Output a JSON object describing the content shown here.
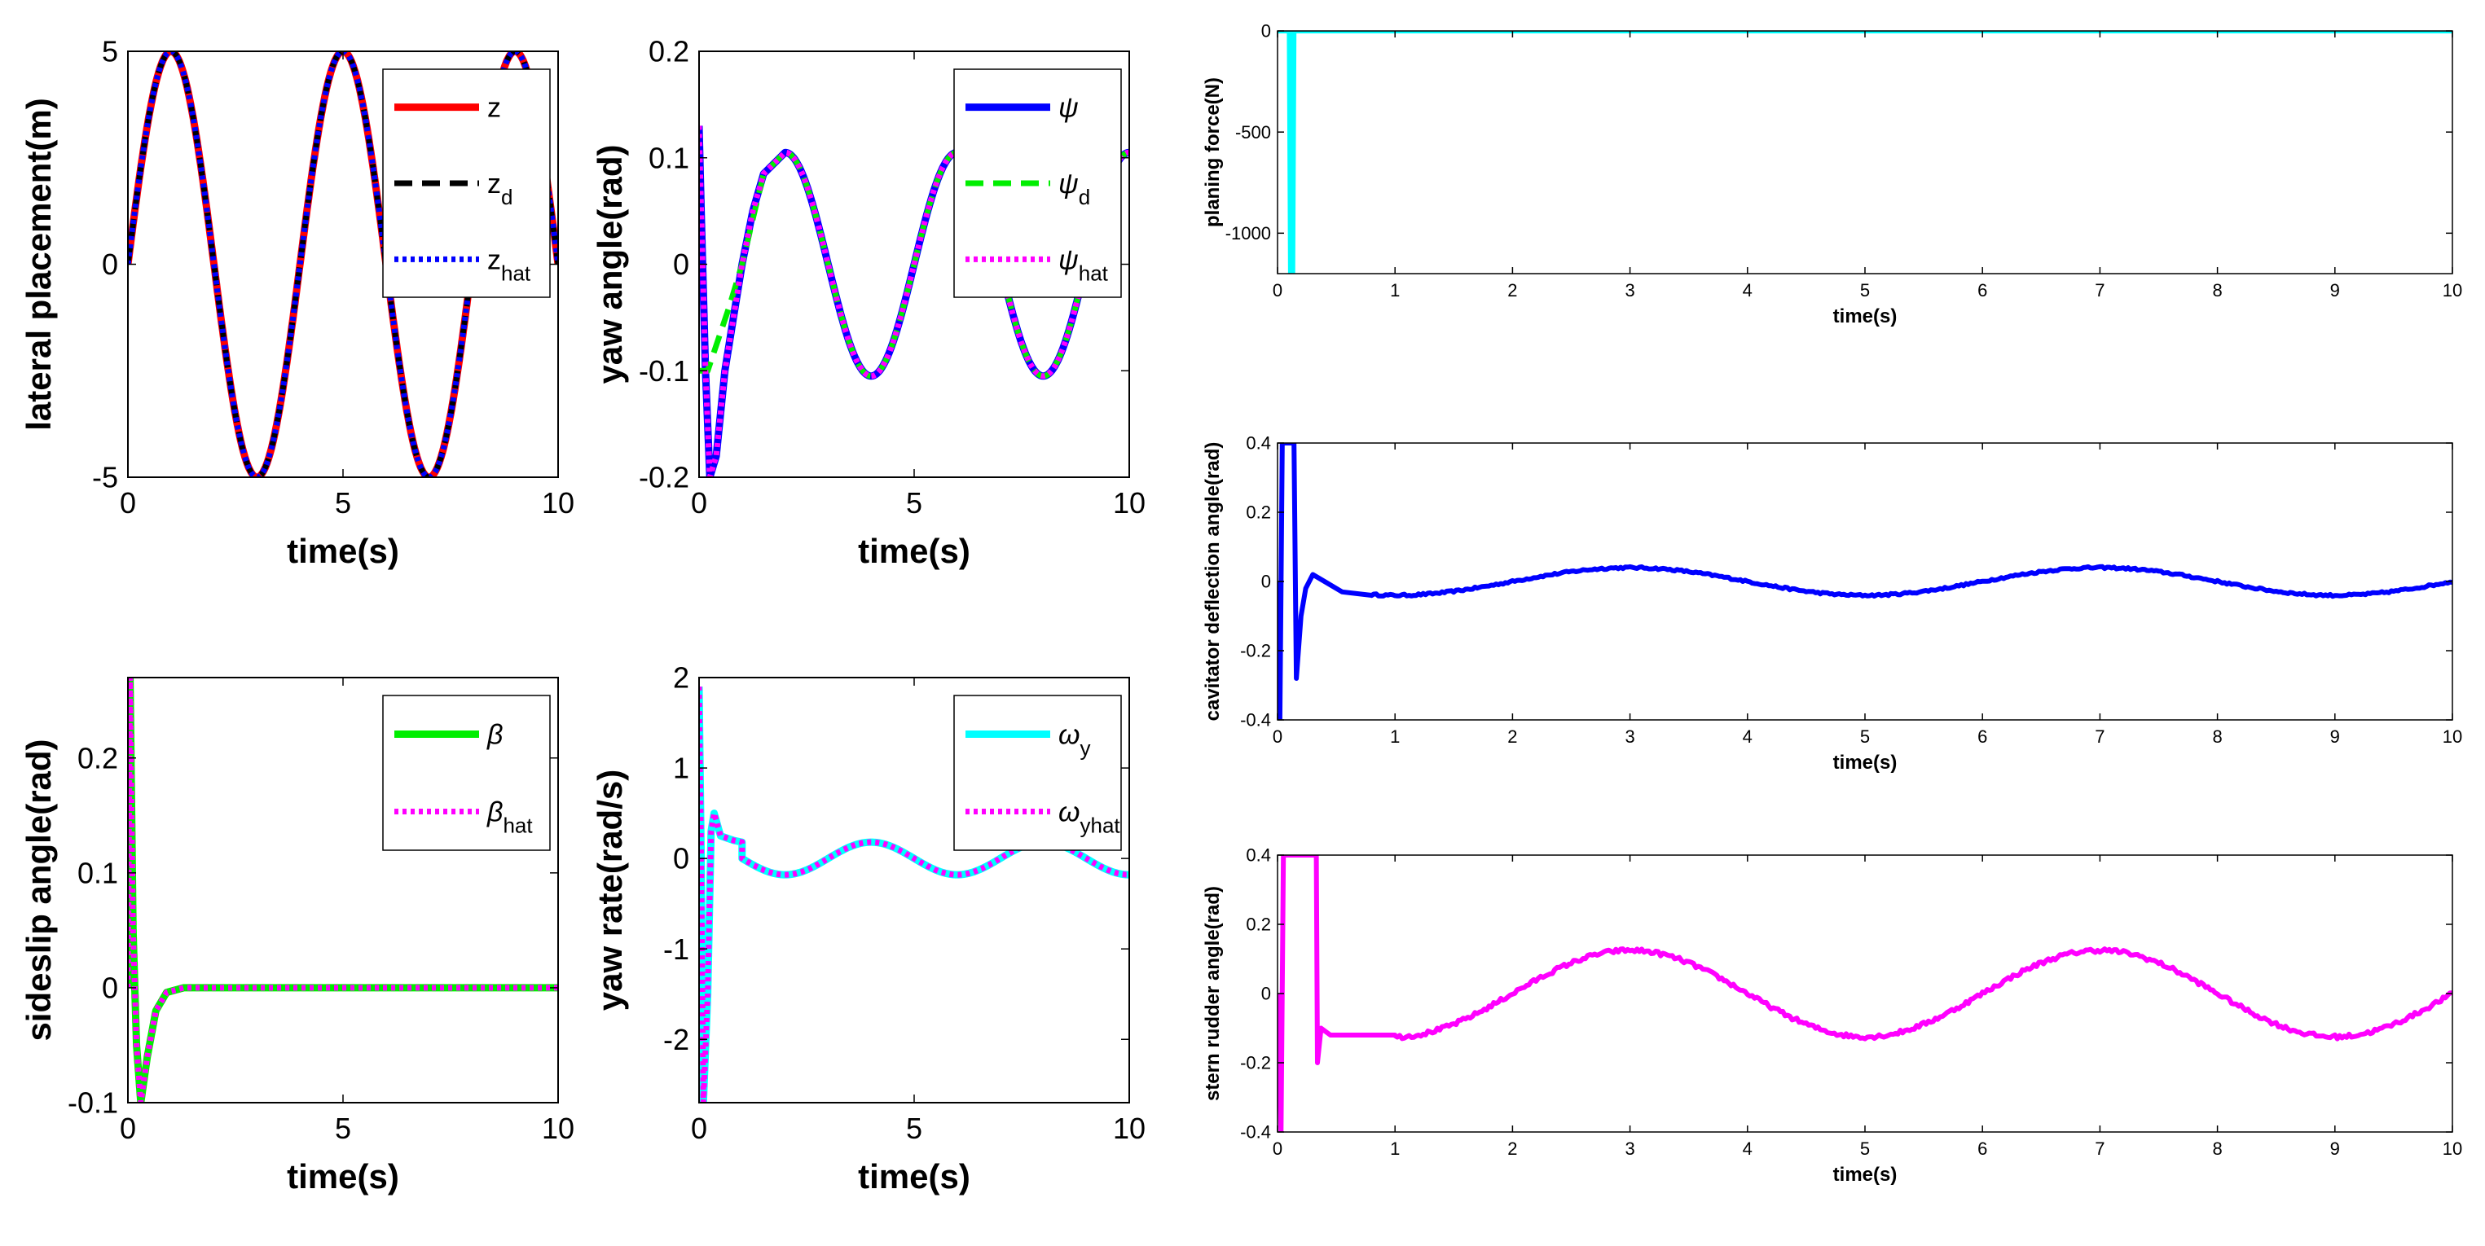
{
  "chart_data": [
    {
      "id": "p1",
      "type": "line",
      "xlabel": "time(s)",
      "ylabel": "lateral placement(m)",
      "xlim": [
        0,
        10
      ],
      "ylim": [
        -5,
        5
      ],
      "xticks": [
        "0",
        "5",
        "10"
      ],
      "yticks": [
        "-5",
        "0",
        "5"
      ],
      "series": [
        {
          "name": "z",
          "sub": "",
          "color": "#ff0000",
          "style": "solid",
          "fn": "sine",
          "params": {
            "amp": 5,
            "period": 4
          }
        },
        {
          "name": "z",
          "sub": "d",
          "color": "#000000",
          "style": "dashed",
          "fn": "sine",
          "params": {
            "amp": 5,
            "period": 4
          }
        },
        {
          "name": "z",
          "sub": "hat",
          "color": "#0000ff",
          "style": "dotted",
          "fn": "sine",
          "params": {
            "amp": 5,
            "period": 4
          }
        }
      ],
      "legend": "top-right"
    },
    {
      "id": "p2",
      "type": "line",
      "xlabel": "time(s)",
      "ylabel": "yaw angle(rad)",
      "xlim": [
        0,
        10
      ],
      "ylim": [
        -0.2,
        0.2
      ],
      "xticks": [
        "0",
        "5",
        "10"
      ],
      "yticks": [
        "-0.2",
        "-0.1",
        "0",
        "0.1",
        "0.2"
      ],
      "series": [
        {
          "name": "ψ",
          "sub": "",
          "color": "#0000ff",
          "style": "solid",
          "points": [
            [
              0,
              0.13
            ],
            [
              0.05,
              0.05
            ],
            [
              0.15,
              -0.1
            ],
            [
              0.25,
              -0.2
            ],
            [
              0.4,
              -0.18
            ],
            [
              0.6,
              -0.1
            ],
            [
              0.8,
              -0.05
            ],
            [
              1.0,
              0.0
            ],
            [
              1.25,
              0.05
            ],
            [
              1.5,
              0.085
            ],
            [
              2,
              0.105
            ]
          ],
          "fn": "cosine",
          "from": 2,
          "params": {
            "amp": 0.105,
            "period": 4
          }
        },
        {
          "name": "ψ",
          "sub": "d",
          "color": "#00ee00",
          "style": "dashed",
          "points": [
            [
              0,
              -0.1
            ],
            [
              0.2,
              -0.1
            ],
            [
              0.45,
              -0.07
            ],
            [
              0.7,
              -0.04
            ],
            [
              1.0,
              0.0
            ],
            [
              1.5,
              0.085
            ],
            [
              2,
              0.105
            ]
          ],
          "fn": "cosine",
          "from": 2,
          "params": {
            "amp": 0.105,
            "period": 4
          }
        },
        {
          "name": "ψ",
          "sub": "hat",
          "color": "#ff00ff",
          "style": "dotted",
          "points": [
            [
              0,
              0.13
            ],
            [
              0.05,
              0.05
            ],
            [
              0.15,
              -0.1
            ],
            [
              0.25,
              -0.2
            ],
            [
              0.4,
              -0.18
            ],
            [
              0.6,
              -0.1
            ],
            [
              0.8,
              -0.05
            ],
            [
              1.0,
              0.0
            ],
            [
              1.25,
              0.05
            ],
            [
              1.5,
              0.085
            ],
            [
              2,
              0.105
            ]
          ],
          "fn": "cosine",
          "from": 2,
          "params": {
            "amp": 0.105,
            "period": 4
          }
        }
      ],
      "legend": "top-right"
    },
    {
      "id": "p3",
      "type": "line",
      "xlabel": "time(s)",
      "ylabel": "sideslip angle(rad)",
      "xlim": [
        0,
        10
      ],
      "ylim": [
        -0.1,
        0.27
      ],
      "xticks": [
        "0",
        "5",
        "10"
      ],
      "yticks": [
        "-0.1",
        "0",
        "0.1",
        "0.2"
      ],
      "series": [
        {
          "name": "β",
          "sub": "",
          "color": "#00ee00",
          "style": "solid",
          "points": [
            [
              0,
              0.0
            ],
            [
              0.05,
              0.27
            ],
            [
              0.12,
              0.05
            ],
            [
              0.2,
              -0.05
            ],
            [
              0.3,
              -0.1
            ],
            [
              0.45,
              -0.06
            ],
            [
              0.65,
              -0.02
            ],
            [
              0.9,
              -0.004
            ],
            [
              1.3,
              0
            ],
            [
              10,
              0
            ]
          ]
        },
        {
          "name": "β",
          "sub": "hat",
          "color": "#ff00ff",
          "style": "dotted",
          "points": [
            [
              0,
              0.0
            ],
            [
              0.05,
              0.27
            ],
            [
              0.12,
              0.05
            ],
            [
              0.2,
              -0.05
            ],
            [
              0.3,
              -0.1
            ],
            [
              0.45,
              -0.06
            ],
            [
              0.65,
              -0.02
            ],
            [
              0.9,
              -0.004
            ],
            [
              1.3,
              0
            ],
            [
              10,
              0
            ]
          ]
        }
      ],
      "legend": "top-right"
    },
    {
      "id": "p4",
      "type": "line",
      "xlabel": "time(s)",
      "ylabel": "yaw rate(rad/s)",
      "xlim": [
        0,
        10
      ],
      "ylim": [
        -2.7,
        2
      ],
      "xticks": [
        "0",
        "5",
        "10"
      ],
      "yticks": [
        "-2",
        "-1",
        "0",
        "1",
        "2"
      ],
      "series": [
        {
          "name": "ω",
          "sub": "y",
          "color": "#00ffff",
          "style": "solid",
          "points": [
            [
              0,
              1.9
            ],
            [
              0.05,
              0.0
            ],
            [
              0.1,
              -2.7
            ],
            [
              0.2,
              -1.5
            ],
            [
              0.28,
              0.3
            ],
            [
              0.35,
              0.5
            ],
            [
              0.5,
              0.25
            ],
            [
              0.8,
              0.2
            ],
            [
              1,
              0.18
            ]
          ],
          "fn": "negsine",
          "from": 1,
          "params": {
            "amp": 0.18,
            "period": 4
          }
        },
        {
          "name": "ω",
          "sub": "yhat",
          "color": "#ff00ff",
          "style": "dotted",
          "points": [
            [
              0,
              1.9
            ],
            [
              0.05,
              0.0
            ],
            [
              0.1,
              -2.7
            ],
            [
              0.2,
              -1.5
            ],
            [
              0.28,
              0.3
            ],
            [
              0.35,
              0.5
            ],
            [
              0.5,
              0.25
            ],
            [
              0.8,
              0.2
            ],
            [
              1,
              0.18
            ]
          ],
          "fn": "negsine",
          "from": 1,
          "params": {
            "amp": 0.18,
            "period": 4
          }
        }
      ],
      "legend": "top-right"
    },
    {
      "id": "p5",
      "type": "line",
      "xlabel": "time(s)",
      "ylabel": "planing force(N)",
      "xlim": [
        0,
        10
      ],
      "ylim": [
        -1200,
        0
      ],
      "xticks": [
        "0",
        "1",
        "2",
        "3",
        "4",
        "5",
        "6",
        "7",
        "8",
        "9",
        "10"
      ],
      "yticks": [
        "-1000",
        "-500",
        "0"
      ],
      "series": [
        {
          "name": "planing force",
          "color": "#00ffff",
          "style": "solid",
          "points": [
            [
              0,
              0
            ],
            [
              0.1,
              0
            ],
            [
              0.11,
              -1200
            ],
            [
              0.13,
              -1200
            ],
            [
              0.14,
              0
            ],
            [
              10,
              0
            ]
          ]
        }
      ]
    },
    {
      "id": "p6",
      "type": "line",
      "xlabel": "time(s)",
      "ylabel": "cavitator deflection angle(rad)",
      "xlim": [
        0,
        10
      ],
      "ylim": [
        -0.4,
        0.4
      ],
      "xticks": [
        "0",
        "1",
        "2",
        "3",
        "4",
        "5",
        "6",
        "7",
        "8",
        "9",
        "10"
      ],
      "yticks": [
        "-0.4",
        "-0.2",
        "0",
        "0.2",
        "0.4"
      ],
      "series": [
        {
          "name": "cavitator deflection angle",
          "color": "#0000ff",
          "style": "solid",
          "points": [
            [
              0,
              0
            ],
            [
              0.02,
              -0.4
            ],
            [
              0.04,
              0.4
            ],
            [
              0.14,
              0.4
            ],
            [
              0.16,
              -0.28
            ],
            [
              0.2,
              -0.1
            ],
            [
              0.24,
              -0.02
            ],
            [
              0.3,
              0.02
            ],
            [
              0.4,
              0.0
            ],
            [
              0.55,
              -0.03
            ],
            [
              0.8,
              -0.04
            ]
          ],
          "fn": "negcos",
          "from": 0.8,
          "params": {
            "amp": 0.04,
            "period": 4,
            "noise": 0.003
          }
        }
      ]
    },
    {
      "id": "p7",
      "type": "line",
      "xlabel": "time(s)",
      "ylabel": "stern rudder angle(rad)",
      "xlim": [
        0,
        10
      ],
      "ylim": [
        -0.4,
        0.4
      ],
      "xticks": [
        "0",
        "1",
        "2",
        "3",
        "4",
        "5",
        "6",
        "7",
        "8",
        "9",
        "10"
      ],
      "yticks": [
        "-0.4",
        "-0.2",
        "0",
        "0.2",
        "0.4"
      ],
      "series": [
        {
          "name": "stern rudder angle",
          "color": "#ff00ff",
          "style": "solid",
          "points": [
            [
              0,
              0
            ],
            [
              0.03,
              -0.4
            ],
            [
              0.05,
              0.4
            ],
            [
              0.33,
              0.4
            ],
            [
              0.34,
              -0.2
            ],
            [
              0.37,
              -0.1
            ],
            [
              0.45,
              -0.12
            ],
            [
              1,
              -0.12
            ]
          ],
          "fn": "negcos",
          "from": 1,
          "params": {
            "amp": 0.125,
            "period": 4,
            "noise": 0.006
          }
        }
      ]
    }
  ]
}
